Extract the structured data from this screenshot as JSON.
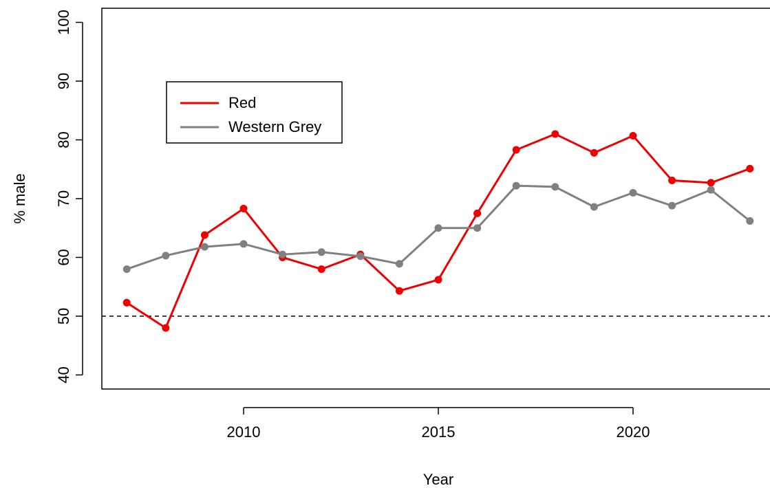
{
  "chart_data": {
    "type": "line",
    "x_label": "Year",
    "y_label": "% male",
    "x": [
      2007,
      2008,
      2009,
      2010,
      2011,
      2012,
      2013,
      2014,
      2015,
      2016,
      2017,
      2018,
      2019,
      2020,
      2021,
      2022,
      2023
    ],
    "series": [
      {
        "name": "Red",
        "color": "#ee0000",
        "values": [
          52.3,
          48.0,
          63.8,
          68.3,
          60.0,
          58.0,
          60.5,
          54.3,
          56.2,
          67.5,
          78.3,
          81.0,
          77.8,
          80.7,
          73.1,
          72.7,
          75.1
        ]
      },
      {
        "name": "Western Grey",
        "color": "#808080",
        "values": [
          58.0,
          60.3,
          61.8,
          62.3,
          60.5,
          60.9,
          60.2,
          58.9,
          65.0,
          65.0,
          72.2,
          72.0,
          68.6,
          71.0,
          68.8,
          71.5,
          66.2
        ]
      }
    ],
    "xlim": [
      2006.36,
      2023.64
    ],
    "ylim": [
      37.6,
      102.4
    ],
    "xticks": [
      2010,
      2015,
      2020
    ],
    "yticks": [
      40,
      50,
      60,
      70,
      80,
      90,
      100
    ],
    "reference_line": 50,
    "legend": "top-left"
  }
}
